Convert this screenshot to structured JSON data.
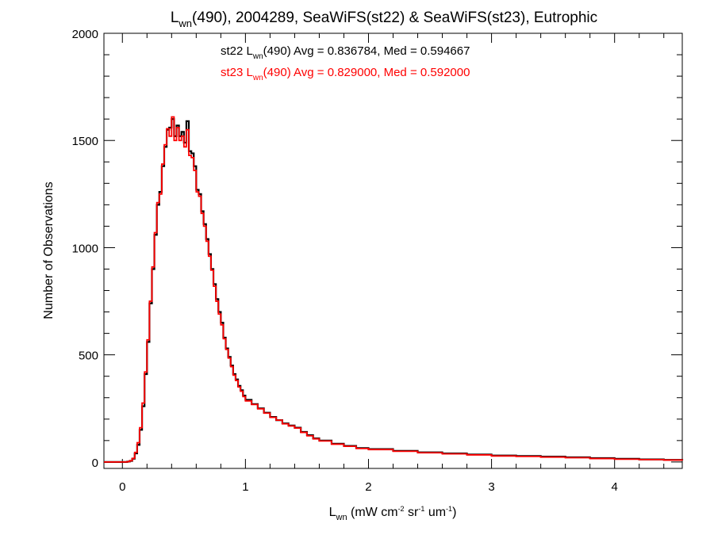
{
  "chart_data": {
    "type": "step",
    "title": {
      "prefix": "L",
      "sub": "wn",
      "rest": "(490), 2004289, SeaWiFS(st22) & SeaWiFS(st23), Eutrophic"
    },
    "xlabel": {
      "prefix": "L",
      "sub": "wn",
      "p1": " (mW cm",
      "sup1": "-2",
      "p2": " sr",
      "sup2": "-1",
      "p3": " um",
      "sup3": "-1",
      "p4": ")"
    },
    "ylabel": "Number of Observations",
    "xlim": [
      -0.15,
      4.55
    ],
    "ylim": [
      -30,
      2000
    ],
    "xticks": [
      0,
      1,
      2,
      3,
      4
    ],
    "xtick_labels": [
      "0",
      "1",
      "2",
      "3",
      "4"
    ],
    "yticks": [
      0,
      500,
      1000,
      1500,
      2000
    ],
    "ytick_labels": [
      "0",
      "500",
      "1000",
      "1500",
      "2000"
    ],
    "bin_width": 0.02,
    "annotations": [
      {
        "name": "st22",
        "prefix": "st22 L",
        "sub": "wn",
        "rest": "(490) Avg = 0.836784, Med = 0.594667",
        "color": "#000000"
      },
      {
        "name": "st23",
        "prefix": "st23 L",
        "sub": "wn",
        "rest": "(490) Avg = 0.829000, Med = 0.592000",
        "color": "#ff0000"
      }
    ],
    "series": [
      {
        "name": "st22",
        "color": "#000000",
        "x": [
          0.0,
          0.02,
          0.04,
          0.06,
          0.08,
          0.1,
          0.12,
          0.14,
          0.16,
          0.18,
          0.2,
          0.22,
          0.24,
          0.26,
          0.28,
          0.3,
          0.32,
          0.34,
          0.36,
          0.38,
          0.4,
          0.42,
          0.44,
          0.46,
          0.48,
          0.5,
          0.52,
          0.54,
          0.56,
          0.58,
          0.6,
          0.62,
          0.64,
          0.66,
          0.68,
          0.7,
          0.72,
          0.74,
          0.76,
          0.78,
          0.8,
          0.82,
          0.84,
          0.86,
          0.88,
          0.9,
          0.92,
          0.94,
          0.96,
          0.98,
          1.0,
          1.05,
          1.1,
          1.15,
          1.2,
          1.25,
          1.3,
          1.35,
          1.4,
          1.45,
          1.5,
          1.55,
          1.6,
          1.7,
          1.8,
          1.9,
          2.0,
          2.2,
          2.4,
          2.6,
          2.8,
          3.0,
          3.2,
          3.4,
          3.6,
          3.8,
          4.0,
          4.2,
          4.4,
          4.55
        ],
        "y": [
          0,
          0,
          2,
          5,
          15,
          40,
          80,
          150,
          260,
          410,
          560,
          740,
          900,
          1060,
          1200,
          1260,
          1380,
          1470,
          1550,
          1560,
          1600,
          1520,
          1570,
          1520,
          1540,
          1490,
          1590,
          1450,
          1440,
          1380,
          1270,
          1250,
          1170,
          1110,
          1040,
          970,
          900,
          830,
          760,
          700,
          650,
          580,
          530,
          490,
          450,
          410,
          385,
          355,
          335,
          310,
          290,
          270,
          250,
          230,
          210,
          195,
          180,
          170,
          160,
          140,
          125,
          110,
          100,
          85,
          75,
          65,
          60,
          52,
          45,
          40,
          35,
          30,
          28,
          25,
          22,
          18,
          15,
          12,
          10,
          8
        ]
      },
      {
        "name": "st23",
        "color": "#ff0000",
        "x": [
          0.0,
          0.02,
          0.04,
          0.06,
          0.08,
          0.1,
          0.12,
          0.14,
          0.16,
          0.18,
          0.2,
          0.22,
          0.24,
          0.26,
          0.28,
          0.3,
          0.32,
          0.34,
          0.36,
          0.38,
          0.4,
          0.42,
          0.44,
          0.46,
          0.48,
          0.5,
          0.52,
          0.54,
          0.56,
          0.58,
          0.6,
          0.62,
          0.64,
          0.66,
          0.68,
          0.7,
          0.72,
          0.74,
          0.76,
          0.78,
          0.8,
          0.82,
          0.84,
          0.86,
          0.88,
          0.9,
          0.92,
          0.94,
          0.96,
          0.98,
          1.0,
          1.05,
          1.1,
          1.15,
          1.2,
          1.25,
          1.3,
          1.35,
          1.4,
          1.45,
          1.5,
          1.55,
          1.6,
          1.7,
          1.8,
          1.9,
          2.0,
          2.2,
          2.4,
          2.6,
          2.8,
          3.0,
          3.2,
          3.4,
          3.6,
          3.8,
          4.0,
          4.2,
          4.4,
          4.55
        ],
        "y": [
          0,
          0,
          2,
          6,
          17,
          45,
          90,
          160,
          275,
          420,
          570,
          750,
          910,
          1070,
          1210,
          1250,
          1390,
          1480,
          1555,
          1520,
          1610,
          1500,
          1560,
          1500,
          1520,
          1470,
          1550,
          1430,
          1420,
          1360,
          1260,
          1240,
          1160,
          1100,
          1030,
          960,
          895,
          820,
          750,
          690,
          640,
          575,
          525,
          485,
          445,
          405,
          380,
          350,
          330,
          305,
          285,
          268,
          248,
          228,
          208,
          195,
          178,
          168,
          158,
          138,
          122,
          108,
          98,
          83,
          73,
          63,
          58,
          50,
          43,
          38,
          33,
          28,
          26,
          23,
          20,
          16,
          13,
          11,
          9,
          7
        ]
      }
    ]
  }
}
